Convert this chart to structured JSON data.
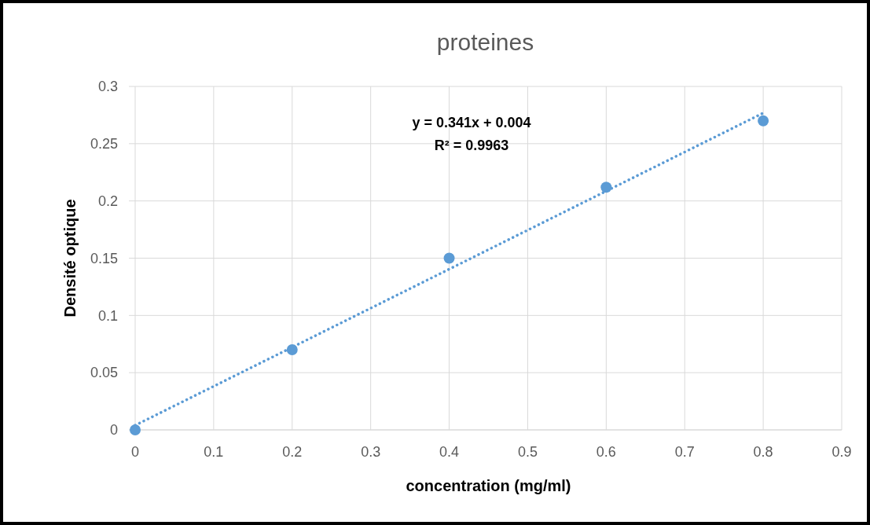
{
  "chart_data": {
    "type": "scatter",
    "title": "proteines",
    "xlabel": "concentration (mg/ml)",
    "ylabel": "Densité optique",
    "annotations": [
      "y = 0.341x + 0.004",
      "R² = 0.9963"
    ],
    "xlim": [
      0,
      0.9
    ],
    "xticks": [
      0,
      0.1,
      0.2,
      0.3,
      0.4,
      0.5,
      0.6,
      0.7,
      0.8,
      0.9
    ],
    "ylim": [
      0,
      0.3
    ],
    "yticks": [
      0,
      0.05,
      0.1,
      0.15,
      0.2,
      0.25,
      0.3
    ],
    "grid": true,
    "marker": "circle",
    "series": [
      {
        "color": "#5b9bd5",
        "x": [
          0,
          0.2,
          0.4,
          0.6,
          0.8
        ],
        "values": [
          0,
          0.07,
          0.15,
          0.212,
          0.27
        ]
      },
      {
        "type": "line",
        "line_style": "dotted",
        "marker": "none",
        "color": "#5b9bd5",
        "x": [
          0,
          0.8
        ],
        "values": [
          0.004,
          0.2768
        ]
      }
    ]
  }
}
